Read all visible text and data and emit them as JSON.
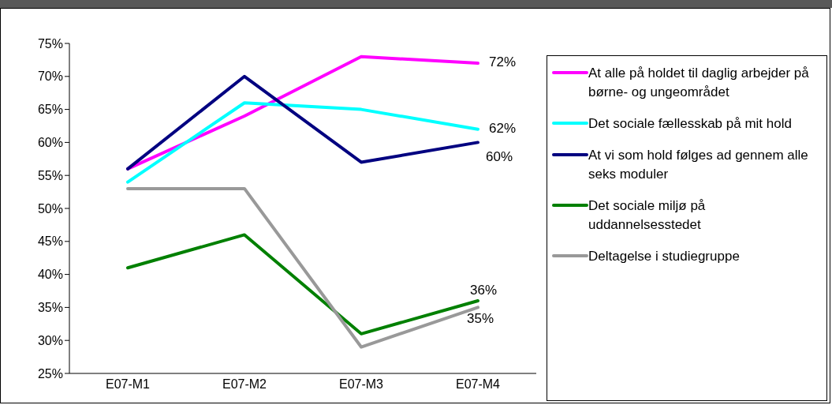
{
  "chart_data": {
    "type": "line",
    "categories": [
      "E07-M1",
      "E07-M2",
      "E07-M3",
      "E07-M4"
    ],
    "series": [
      {
        "name": "At alle på holdet til daglig arbejder på børne- og ungeområdet",
        "color": "#ff00ff",
        "values": [
          56,
          64,
          73,
          72
        ],
        "value_labels": [
          null,
          null,
          null,
          "72%"
        ]
      },
      {
        "name": "Det sociale fællesskab på mit hold",
        "color": "#00ffff",
        "values": [
          54,
          66,
          65,
          62
        ],
        "value_labels": [
          null,
          null,
          null,
          "62%"
        ]
      },
      {
        "name": "At vi som hold følges ad gennem alle seks moduler",
        "color": "#000080",
        "values": [
          56,
          70,
          57,
          60
        ],
        "value_labels": [
          null,
          null,
          null,
          "60%"
        ]
      },
      {
        "name": "Det sociale miljø på uddannelsesstedet",
        "color": "#008000",
        "values": [
          41,
          46,
          31,
          36
        ],
        "value_labels": [
          null,
          null,
          null,
          "36%"
        ]
      },
      {
        "name": "Deltagelse i studiegruppe",
        "color": "#999999",
        "values": [
          53,
          53,
          29,
          35
        ],
        "value_labels": [
          null,
          null,
          null,
          "35%"
        ]
      }
    ],
    "ylim": [
      25,
      75
    ],
    "yticks": [
      {
        "value": 25,
        "label": "25%"
      },
      {
        "value": 30,
        "label": "30%"
      },
      {
        "value": 35,
        "label": "35%"
      },
      {
        "value": 40,
        "label": "40%"
      },
      {
        "value": 45,
        "label": "45%"
      },
      {
        "value": 50,
        "label": "50%"
      },
      {
        "value": 55,
        "label": "55%"
      },
      {
        "value": 60,
        "label": "60%"
      },
      {
        "value": 65,
        "label": "65%"
      },
      {
        "value": 70,
        "label": "70%"
      },
      {
        "value": 75,
        "label": "75%"
      }
    ],
    "grid": false,
    "legend": "right",
    "marker": "none",
    "line_style": "solid"
  }
}
